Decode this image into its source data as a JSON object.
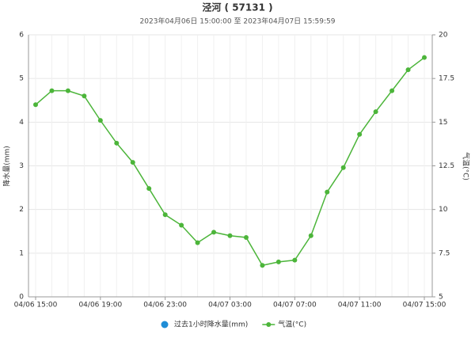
{
  "chart_data": {
    "type": "line",
    "title": "泾河 ( 57131 )",
    "subtitle": "2023年04月06日 15:00:00 至 2023年04月07日 15:59:59",
    "ylabel": "降水量(mm)",
    "y2label": "气温(°C)",
    "categories": [
      "04/06 15:00",
      null,
      null,
      null,
      "04/06 19:00",
      null,
      null,
      null,
      "04/06 23:00",
      null,
      null,
      null,
      "04/07 03:00",
      null,
      null,
      null,
      "04/07 07:00",
      null,
      null,
      null,
      "04/07 11:00",
      null,
      null,
      null,
      "04/07 15:00"
    ],
    "ylim": [
      0,
      6
    ],
    "yticks": [
      0,
      1,
      2,
      3,
      4,
      5,
      6
    ],
    "y2lim": [
      5,
      20
    ],
    "y2ticks": [
      5,
      7.5,
      10,
      12.5,
      15,
      17.5,
      20
    ],
    "grid": true,
    "legend": "bottom",
    "series": [
      {
        "name": "过去1小时降水量(mm)",
        "color": "#1f8dd6",
        "kind": "bar",
        "values": [
          0,
          0,
          0,
          0,
          0,
          0,
          0,
          0,
          0,
          0,
          0,
          0,
          0,
          0,
          0,
          0,
          0,
          0,
          0,
          0,
          0,
          0,
          0,
          0,
          0
        ]
      },
      {
        "name": "气温(°C)",
        "color": "#4cb53a",
        "axis": "y2",
        "values": [
          16.0,
          16.8,
          16.8,
          16.5,
          15.1,
          13.8,
          12.7,
          11.2,
          9.7,
          9.1,
          8.1,
          8.7,
          8.5,
          8.4,
          6.8,
          7.0,
          7.1,
          8.5,
          11.0,
          12.4,
          14.3,
          15.6,
          16.8,
          18.0,
          18.7
        ]
      }
    ]
  }
}
